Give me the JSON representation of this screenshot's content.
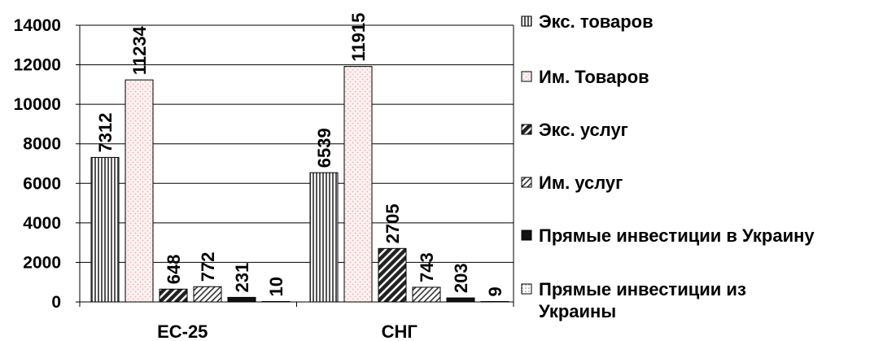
{
  "chart_data": {
    "type": "bar",
    "title": "",
    "xlabel": "",
    "ylabel": "",
    "categories": [
      "ЕС-25",
      "СНГ"
    ],
    "ylim": [
      0,
      14000
    ],
    "yticks": [
      "0",
      "2000",
      "4000",
      "6000",
      "8000",
      "10000",
      "12000",
      "14000"
    ],
    "grid": true,
    "legend_position": "right",
    "series": [
      {
        "name": "Экс. товаров",
        "values": [
          7312,
          6539
        ],
        "pattern": "vertical-lines"
      },
      {
        "name": "Им. Товаров",
        "values": [
          11234,
          11915
        ],
        "pattern": "pink-dots"
      },
      {
        "name": "Экс. услуг",
        "values": [
          648,
          2705
        ],
        "pattern": "dark-diagonal"
      },
      {
        "name": "Им. услуг",
        "values": [
          772,
          743
        ],
        "pattern": "light-diagonal"
      },
      {
        "name": "Прямые инвестиции в Украину",
        "values": [
          231,
          203
        ],
        "pattern": "black"
      },
      {
        "name": "Прямые инвестиции из Украины",
        "legend_lines": [
          "Прямые инвестиции из",
          "Украины"
        ],
        "values": [
          10,
          9
        ],
        "pattern": "light-dots"
      }
    ]
  }
}
